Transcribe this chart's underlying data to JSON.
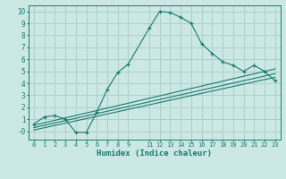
{
  "xlabel": "Humidex (Indice chaleur)",
  "bg_color": "#cce8e4",
  "grid_color": "#a8cdc9",
  "line_color": "#1a7a6e",
  "xlim": [
    -0.5,
    23.5
  ],
  "ylim": [
    -0.7,
    10.5
  ],
  "xticks": [
    0,
    1,
    2,
    3,
    4,
    5,
    6,
    7,
    8,
    9,
    11,
    12,
    13,
    14,
    15,
    16,
    17,
    18,
    19,
    20,
    21,
    22,
    23
  ],
  "yticks": [
    0,
    1,
    2,
    3,
    4,
    5,
    6,
    7,
    8,
    9,
    10
  ],
  "ytick_labels": [
    "-0",
    "1",
    "2",
    "3",
    "4",
    "5",
    "6",
    "7",
    "8",
    "9",
    "10"
  ],
  "main_line_x": [
    0,
    1,
    2,
    3,
    4,
    5,
    6,
    7,
    8,
    9,
    11,
    12,
    13,
    14,
    15,
    16,
    17,
    18,
    19,
    20,
    21,
    22,
    23
  ],
  "main_line_y": [
    0.6,
    1.2,
    1.3,
    1.0,
    -0.1,
    -0.1,
    1.6,
    3.5,
    4.9,
    5.6,
    8.6,
    10.0,
    9.9,
    9.5,
    9.0,
    7.3,
    6.5,
    5.8,
    5.5,
    5.0,
    5.5,
    5.0,
    4.2
  ],
  "trend_lines": [
    {
      "x": [
        0,
        23
      ],
      "y": [
        0.5,
        5.2
      ]
    },
    {
      "x": [
        0,
        23
      ],
      "y": [
        0.3,
        4.8
      ]
    },
    {
      "x": [
        0,
        23
      ],
      "y": [
        0.1,
        4.5
      ]
    }
  ]
}
